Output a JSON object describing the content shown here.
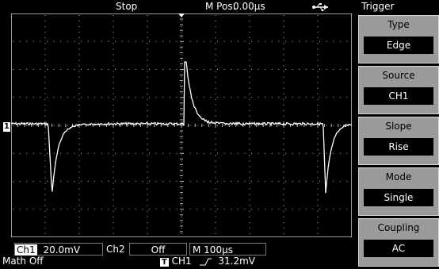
{
  "status": {
    "run_state": "Stop",
    "mpos_label": "M Pos:",
    "mpos_value": "0.00µs",
    "usb_icon": "usb-icon"
  },
  "channel_marker": "1",
  "bottom": {
    "ch1_label": "Ch1",
    "ch1_scale": "20.0mV",
    "ch2_label": "Ch2",
    "ch2_state": "Off",
    "timebase": "M 100µs",
    "math": "Math Off",
    "trig_badge": "T",
    "trig_source": "CH1",
    "trig_slope_icon": "rising-edge-icon",
    "trig_level": "31.2mV"
  },
  "menu": {
    "title": "Trigger",
    "items": [
      {
        "label": "Type",
        "value": "Edge"
      },
      {
        "label": "Source",
        "value": "CH1"
      },
      {
        "label": "Slope",
        "value": "Rise"
      },
      {
        "label": "Mode",
        "value": "Single"
      },
      {
        "label": "Coupling",
        "value": "AC"
      }
    ]
  },
  "colors": {
    "trace": "#ffffff",
    "background": "#000000",
    "grid": "#ffffff",
    "menu_bg": "#9a9a9a"
  }
}
